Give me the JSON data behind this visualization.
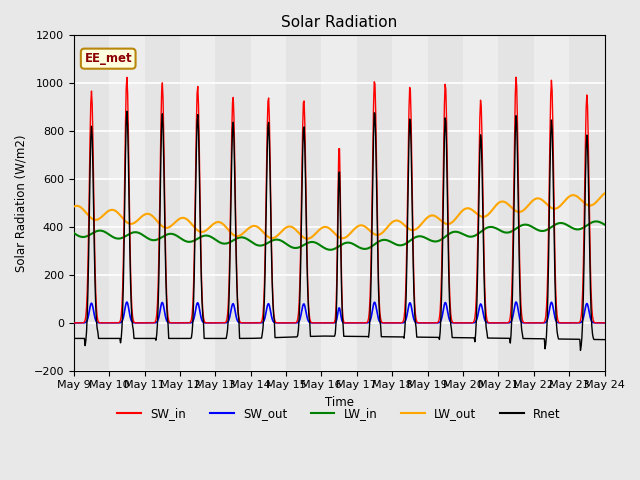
{
  "title": "Solar Radiation",
  "ylabel": "Solar Radiation (W/m2)",
  "xlabel": "Time",
  "ylim": [
    -200,
    1200
  ],
  "yticks": [
    -200,
    0,
    200,
    400,
    600,
    800,
    1000,
    1200
  ],
  "xtick_labels": [
    "May 9",
    "May 10",
    "May 11",
    "May 12",
    "May 13",
    "May 14",
    "May 15",
    "May 16",
    "May 17",
    "May 18",
    "May 19",
    "May 20",
    "May 21",
    "May 22",
    "May 23",
    "May 24"
  ],
  "annotation_text": "EE_met",
  "SW_in_color": "red",
  "SW_out_color": "blue",
  "LW_in_color": "green",
  "LW_out_color": "orange",
  "Rnet_color": "black",
  "n_days": 15,
  "dt": 0.02,
  "figsize": [
    6.4,
    4.8
  ],
  "dpi": 100
}
